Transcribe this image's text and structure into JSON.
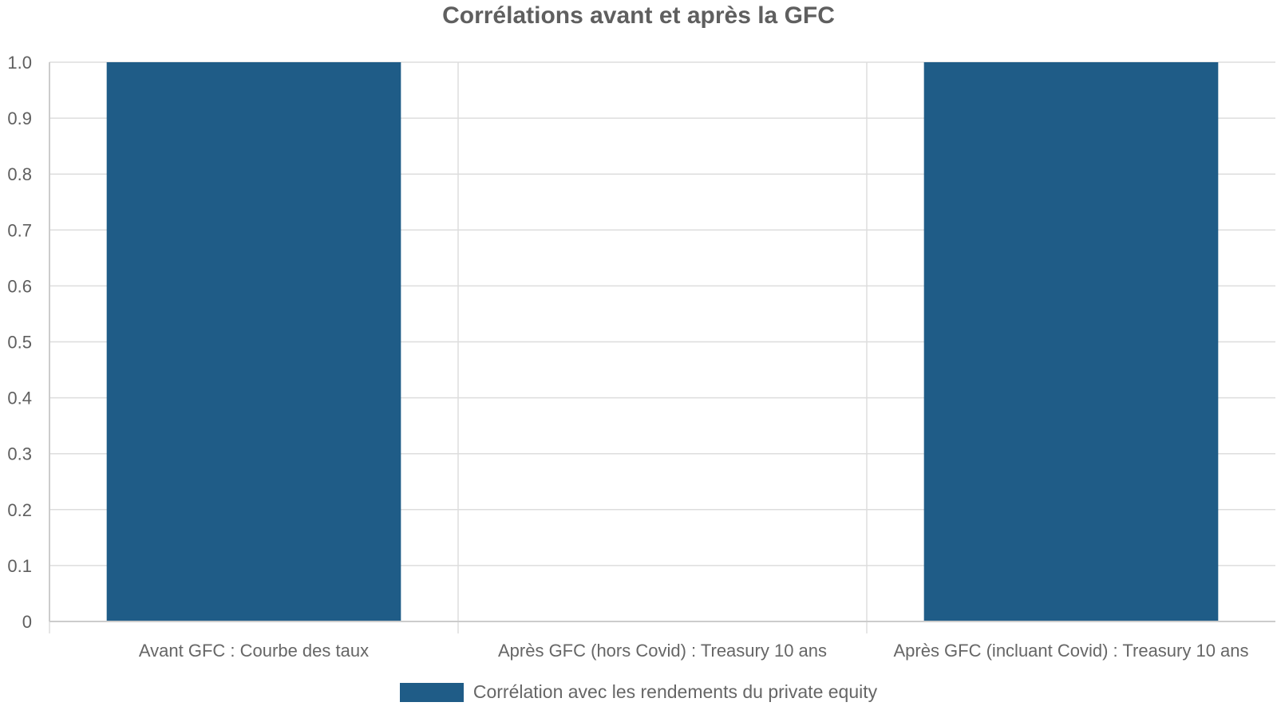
{
  "chart_data": {
    "type": "bar",
    "title": "Corrélations avant et après la GFC",
    "categories": [
      "Avant GFC : Courbe des taux",
      "Après GFC (hors Covid) : Treasury 10 ans",
      "Après GFC (incluant Covid) : Treasury 10 ans"
    ],
    "series": [
      {
        "name": "Corrélation avec les rendements du private equity",
        "values": [
          1.0,
          0,
          1.0
        ],
        "color": "#1f5c87"
      }
    ],
    "ylim": [
      0,
      1.0
    ],
    "yticks": [
      "0",
      "0.1",
      "0.2",
      "0.3",
      "0.4",
      "0.5",
      "0.6",
      "0.7",
      "0.8",
      "0.9",
      "1.0"
    ],
    "grid": true,
    "legend_position": "bottom-center"
  }
}
